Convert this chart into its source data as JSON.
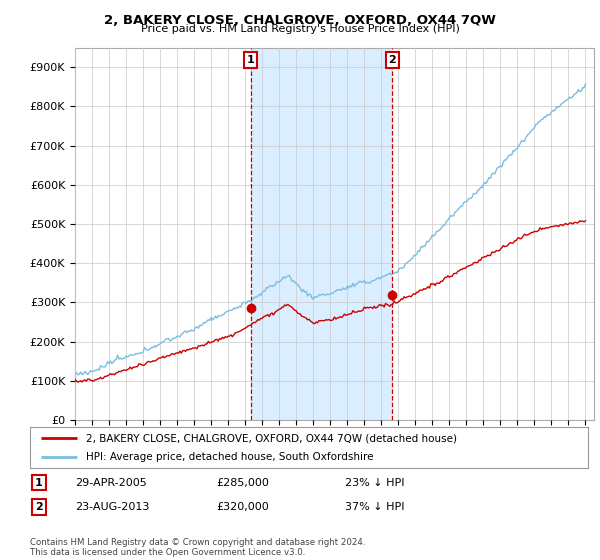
{
  "title": "2, BAKERY CLOSE, CHALGROVE, OXFORD, OX44 7QW",
  "subtitle": "Price paid vs. HM Land Registry's House Price Index (HPI)",
  "ylabel_ticks": [
    "£0",
    "£100K",
    "£200K",
    "£300K",
    "£400K",
    "£500K",
    "£600K",
    "£700K",
    "£800K",
    "£900K"
  ],
  "ylim": [
    0,
    950000
  ],
  "xlim_start": 1995.0,
  "xlim_end": 2025.5,
  "purchase1_x": 2005.32,
  "purchase1_y": 285000,
  "purchase2_x": 2013.64,
  "purchase2_y": 320000,
  "legend_line1": "2, BAKERY CLOSE, CHALGROVE, OXFORD, OX44 7QW (detached house)",
  "legend_line2": "HPI: Average price, detached house, South Oxfordshire",
  "hpi_color": "#7bbde0",
  "hpi_fill_color": "#d6eaf8",
  "price_color": "#cc0000",
  "bg_color": "#ffffff",
  "shaded_color": "#daeeff",
  "marker_box_color": "#cc0000",
  "grid_color": "#c8c8c8",
  "footer": "Contains HM Land Registry data © Crown copyright and database right 2024.\nThis data is licensed under the Open Government Licence v3.0."
}
